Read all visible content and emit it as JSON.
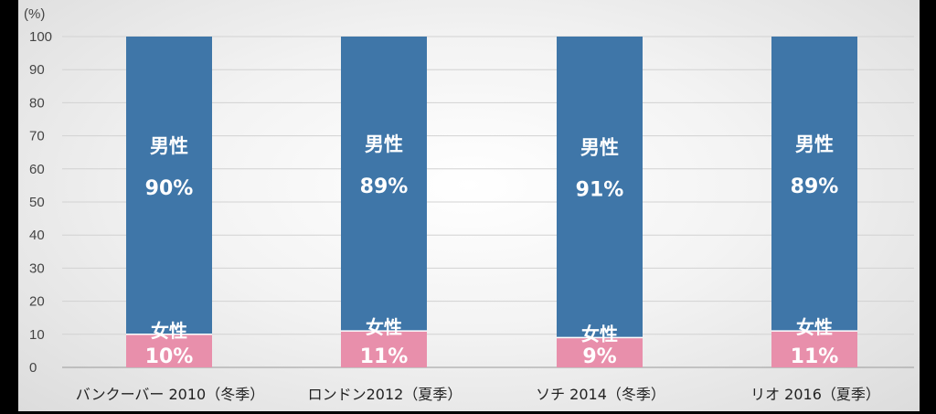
{
  "chart_data": {
    "type": "bar",
    "stacked": true,
    "unit_label": "(%)",
    "categories": [
      "バンクーバー 2010（冬季）",
      "ロンドン2012（夏季）",
      "ソチ 2014（冬季）",
      "リオ 2016（夏季）"
    ],
    "series": [
      {
        "name": "女性",
        "values": [
          10,
          11,
          9,
          11
        ],
        "labels": [
          "10%",
          "11%",
          "9%",
          "11%"
        ],
        "color": "#e88fab"
      },
      {
        "name": "男性",
        "values": [
          90,
          89,
          91,
          89
        ],
        "labels": [
          "90%",
          "89%",
          "91%",
          "89%"
        ],
        "color": "#3f76a8"
      }
    ],
    "yticks": [
      0,
      10,
      20,
      30,
      40,
      50,
      60,
      70,
      80,
      90,
      100
    ],
    "ylim": [
      0,
      100
    ],
    "grid": true,
    "legend": "none"
  }
}
